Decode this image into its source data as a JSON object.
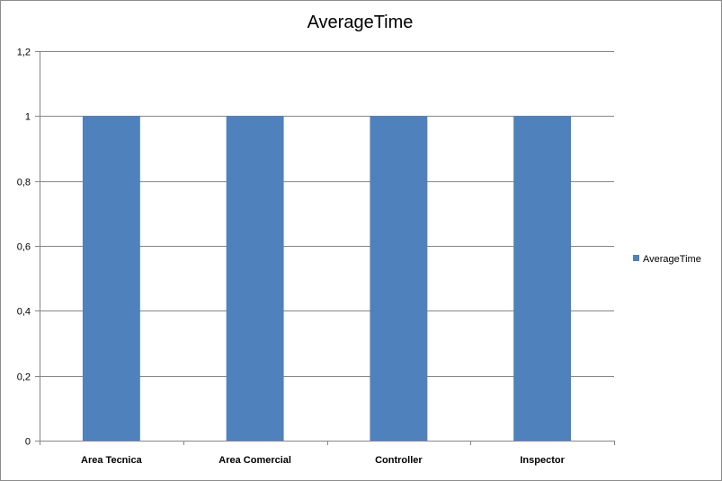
{
  "chart_data": {
    "type": "bar",
    "title": "AverageTime",
    "categories": [
      "Area Tecnica",
      "Area Comercial",
      "Controller",
      "Inspector"
    ],
    "series": [
      {
        "name": "AverageTime",
        "values": [
          1,
          1,
          1,
          1
        ],
        "color": "#4f81bd"
      }
    ],
    "ylim": [
      0,
      1.2
    ],
    "yticks": [
      0,
      0.2,
      0.4,
      0.6,
      0.8,
      1,
      1.2
    ],
    "ytick_labels": [
      "0",
      "0,2",
      "0,4",
      "0,6",
      "0,8",
      "1",
      "1,2"
    ],
    "xlabel": "",
    "ylabel": "",
    "grid": true,
    "legend_position": "right"
  }
}
